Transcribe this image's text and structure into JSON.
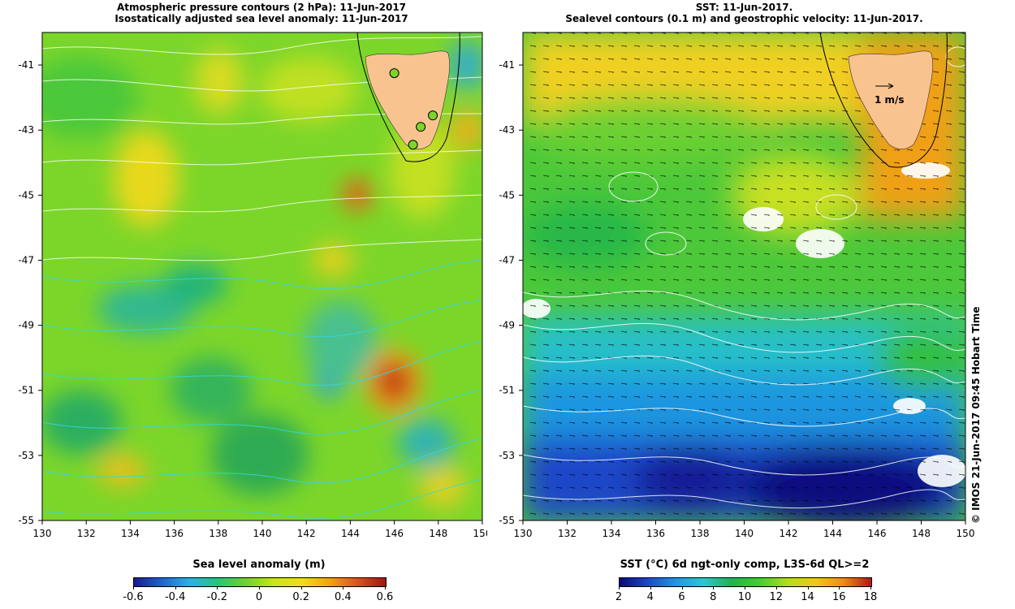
{
  "left_panel": {
    "title_line1": "Atmospheric pressure contours (2 hPa): 11-Jun-2017",
    "title_line2": "Isostatically adjusted sea level anomaly: 11-Jun-2017",
    "y_ticks": [
      "-41",
      "-43",
      "-45",
      "-47",
      "-49",
      "-51",
      "-53",
      "-55"
    ],
    "x_ticks": [
      "130",
      "132",
      "134",
      "136",
      "138",
      "140",
      "142",
      "144",
      "146",
      "148",
      "150"
    ],
    "colorbar": {
      "label": "Sea level anomaly (m)",
      "ticks": [
        "-0.6",
        "-0.4",
        "-0.2",
        "0",
        "0.2",
        "0.4",
        "0.6"
      ]
    },
    "tide_gauges": [
      {
        "lon": 146.0,
        "lat": -41.25
      },
      {
        "lon": 147.2,
        "lat": -42.9
      },
      {
        "lon": 147.75,
        "lat": -42.55
      },
      {
        "lon": 146.85,
        "lat": -43.45
      }
    ]
  },
  "right_panel": {
    "title_line1": "SST: 11-Jun-2017.",
    "title_line2": "Sealevel contours (0.1 m) and geostrophic velocity: 11-Jun-2017.",
    "y_ticks": [
      "-41",
      "-43",
      "-45",
      "-47",
      "-49",
      "-51",
      "-53",
      "-55"
    ],
    "x_ticks": [
      "130",
      "132",
      "134",
      "136",
      "138",
      "140",
      "142",
      "144",
      "146",
      "148",
      "150"
    ],
    "velocity_scale_label": "1 m/s",
    "colorbar": {
      "label": "SST (°C) 6d ngt-only comp, L3S-6d QL>=2",
      "ticks": [
        "2",
        "4",
        "6",
        "8",
        "10",
        "12",
        "14",
        "16",
        "18"
      ]
    }
  },
  "credit": "© IMOS 21-Jun-2017 09:45 Hobart Time",
  "colors": {
    "land": "#f9c390",
    "sla_scale": [
      "#1a1a8c",
      "#1e64d2",
      "#27b4e6",
      "#21c87a",
      "#6fd22a",
      "#c8e61e",
      "#f0dc1e",
      "#f5a014",
      "#dc501e",
      "#a01414"
    ],
    "sst_scale": [
      "#0a0a78",
      "#1e46c8",
      "#1e96e6",
      "#28c8d2",
      "#1eb450",
      "#3cd228",
      "#b4dc1e",
      "#f0c81e",
      "#f08c14",
      "#b41414"
    ]
  }
}
